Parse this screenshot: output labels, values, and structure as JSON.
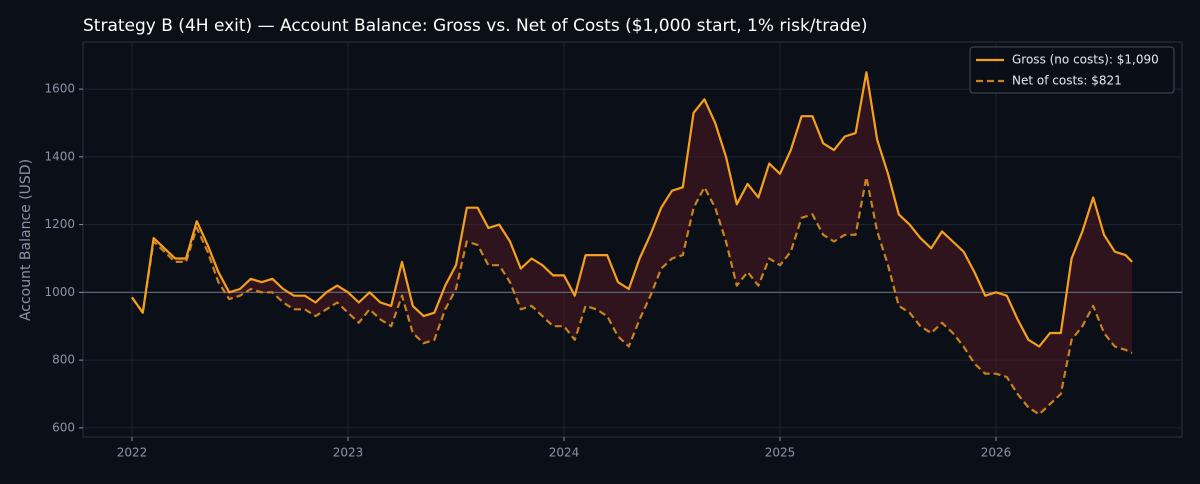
{
  "chart_data": {
    "type": "line",
    "title": "Strategy B (4H exit) — Account Balance: Gross vs. Net of Costs ($1,000 start, 1% risk/trade)",
    "y_label": "Account Balance (USD)",
    "x": [
      2022.0,
      2022.05,
      2022.1,
      2022.15,
      2022.2,
      2022.25,
      2022.3,
      2022.35,
      2022.4,
      2022.45,
      2022.5,
      2022.55,
      2022.6,
      2022.65,
      2022.7,
      2022.75,
      2022.8,
      2022.85,
      2022.9,
      2022.95,
      2023.0,
      2023.05,
      2023.1,
      2023.15,
      2023.2,
      2023.25,
      2023.3,
      2023.35,
      2023.4,
      2023.45,
      2023.5,
      2023.55,
      2023.6,
      2023.65,
      2023.7,
      2023.75,
      2023.8,
      2023.85,
      2023.9,
      2023.95,
      2024.0,
      2024.05,
      2024.1,
      2024.15,
      2024.2,
      2024.25,
      2024.3,
      2024.35,
      2024.4,
      2024.45,
      2024.5,
      2024.55,
      2024.6,
      2024.65,
      2024.7,
      2024.75,
      2024.8,
      2024.85,
      2024.9,
      2024.95,
      2025.0,
      2025.05,
      2025.1,
      2025.15,
      2025.2,
      2025.25,
      2025.3,
      2025.35,
      2025.4,
      2025.45,
      2025.5,
      2025.55,
      2025.6,
      2025.65,
      2025.7,
      2025.75,
      2025.8,
      2025.85,
      2025.9,
      2025.95,
      2026.0,
      2026.05,
      2026.1,
      2026.15,
      2026.2,
      2026.25,
      2026.3,
      2026.35,
      2026.4,
      2026.45,
      2026.5,
      2026.55,
      2026.6,
      2026.63
    ],
    "series": [
      {
        "name": "Gross (no costs): $1,090",
        "color": "#f5a01a",
        "dash": false,
        "values": [
          985,
          940,
          1160,
          1130,
          1100,
          1100,
          1210,
          1140,
          1060,
          1000,
          1010,
          1040,
          1030,
          1040,
          1010,
          990,
          990,
          970,
          1000,
          1020,
          1000,
          970,
          1000,
          970,
          960,
          1090,
          960,
          930,
          940,
          1020,
          1080,
          1250,
          1250,
          1190,
          1200,
          1150,
          1070,
          1100,
          1080,
          1050,
          1050,
          990,
          1110,
          1110,
          1110,
          1030,
          1010,
          1100,
          1170,
          1250,
          1300,
          1310,
          1530,
          1570,
          1500,
          1400,
          1260,
          1320,
          1280,
          1380,
          1350,
          1420,
          1520,
          1520,
          1440,
          1420,
          1460,
          1470,
          1650,
          1450,
          1350,
          1230,
          1200,
          1160,
          1130,
          1180,
          1150,
          1120,
          1060,
          990,
          1000,
          990,
          920,
          860,
          840,
          880,
          880,
          1100,
          1180,
          1280,
          1170,
          1120,
          1110,
          1090
        ]
      },
      {
        "name": "Net of costs: $821",
        "color": "#c9821c",
        "dash": true,
        "values": [
          985,
          940,
          1150,
          1120,
          1090,
          1090,
          1190,
          1120,
          1030,
          980,
          990,
          1010,
          1000,
          1000,
          970,
          950,
          950,
          930,
          950,
          970,
          940,
          910,
          950,
          920,
          900,
          990,
          880,
          850,
          860,
          950,
          1010,
          1150,
          1140,
          1080,
          1080,
          1030,
          950,
          960,
          930,
          900,
          900,
          860,
          960,
          950,
          930,
          870,
          840,
          920,
          990,
          1070,
          1100,
          1110,
          1250,
          1310,
          1250,
          1150,
          1020,
          1060,
          1020,
          1100,
          1080,
          1120,
          1220,
          1230,
          1170,
          1150,
          1170,
          1170,
          1340,
          1180,
          1080,
          960,
          940,
          900,
          880,
          910,
          880,
          840,
          790,
          760,
          760,
          750,
          700,
          660,
          640,
          670,
          700,
          860,
          900,
          960,
          880,
          840,
          830,
          821
        ]
      }
    ],
    "fill_between_color": "#5a1a24",
    "reference_line": 1000,
    "xlim": [
      2021.773,
      2026.861
    ],
    "ylim": [
      573,
      1739
    ],
    "xticks": [
      2022,
      2023,
      2024,
      2025,
      2026
    ],
    "yticks": [
      600,
      800,
      1000,
      1200,
      1400,
      1600
    ],
    "grid": true,
    "legend": "upper right"
  }
}
